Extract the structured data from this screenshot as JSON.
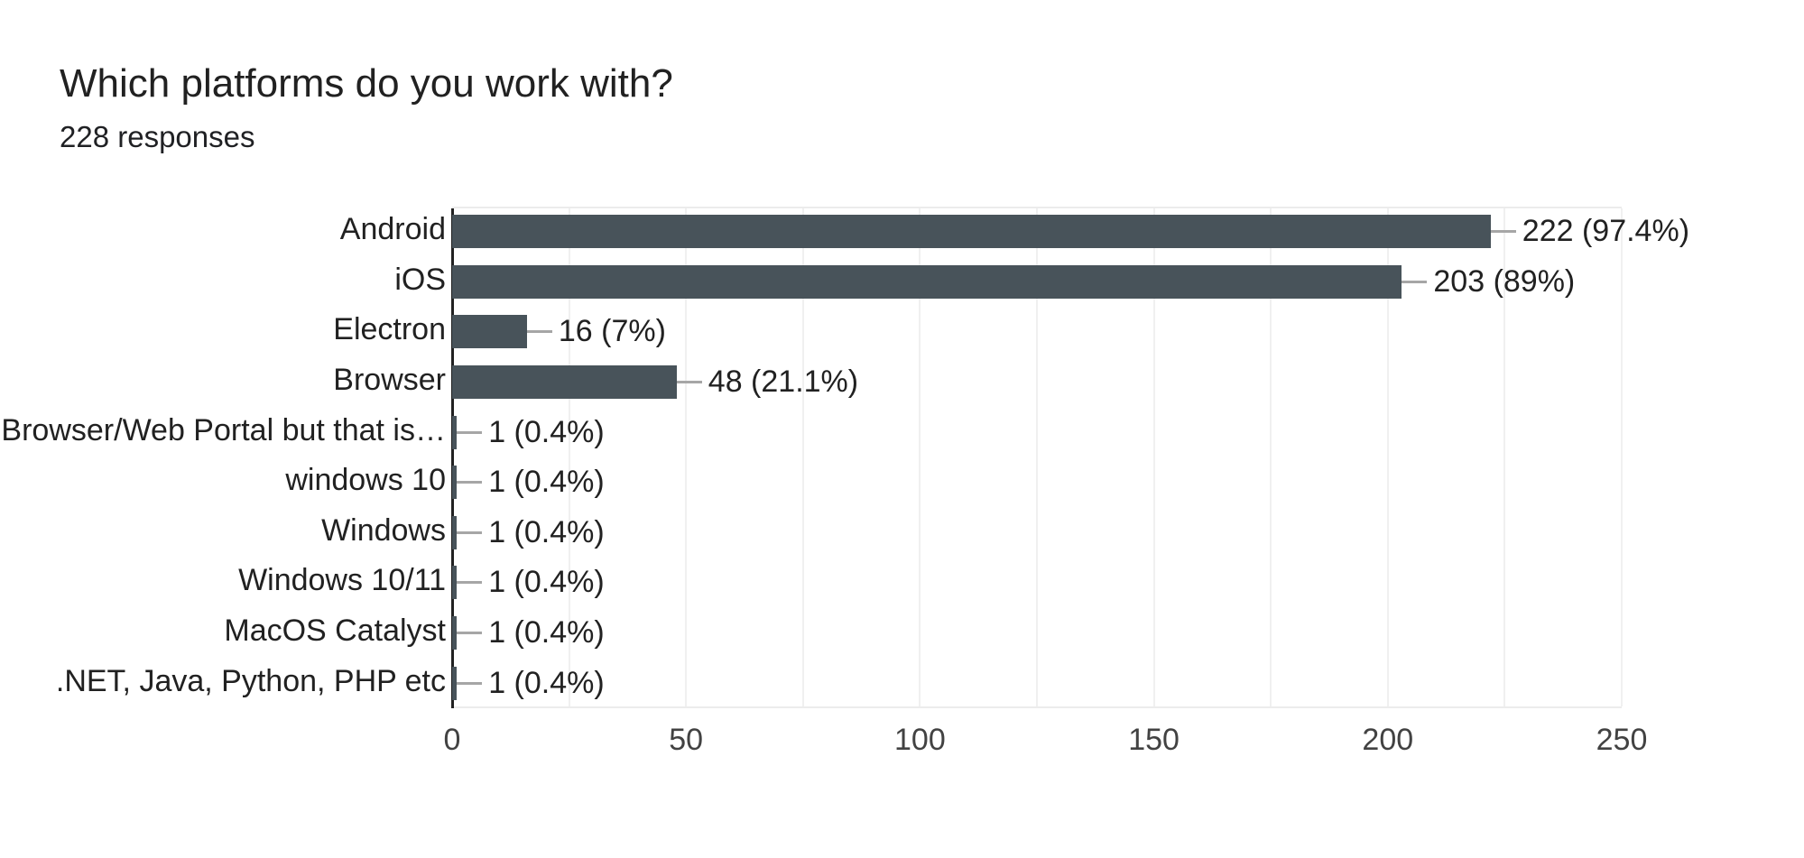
{
  "header": {
    "title": "Which platforms do you work with?",
    "subtitle": "228 responses"
  },
  "chart_data": {
    "type": "bar",
    "orientation": "horizontal",
    "title": "Which platforms do you work with?",
    "subtitle": "228 responses",
    "categories": [
      "Android",
      "iOS",
      "Electron",
      "Browser",
      "Browser/Web Portal but that is…",
      "windows 10",
      "Windows",
      "Windows 10/11",
      "MacOS Catalyst",
      ".NET, Java, Python, PHP etc"
    ],
    "values": [
      222,
      203,
      16,
      48,
      1,
      1,
      1,
      1,
      1,
      1
    ],
    "bar_labels": [
      "222 (97.4%)",
      "203 (89%)",
      "16 (7%)",
      "48 (21.1%)",
      "1 (0.4%)",
      "1 (0.4%)",
      "1 (0.4%)",
      "1 (0.4%)",
      "1 (0.4%)",
      "1 (0.4%)"
    ],
    "xlabel": "",
    "ylabel": "",
    "xlim": [
      0,
      250
    ],
    "xticks": [
      0,
      50,
      100,
      150,
      200,
      250
    ],
    "minor_grid_step": 25,
    "grid": true,
    "legend": "none",
    "colors": {
      "background": "#ffffff",
      "bar": "#48535A",
      "axis": "#212121",
      "gridline": "#f0f0f0",
      "plot_border": "#ececec",
      "connector": "#a6a6a6",
      "label_text": "#212121",
      "tick_text": "#424242",
      "title_text": "#212121",
      "subtitle_text": "#202124"
    }
  }
}
